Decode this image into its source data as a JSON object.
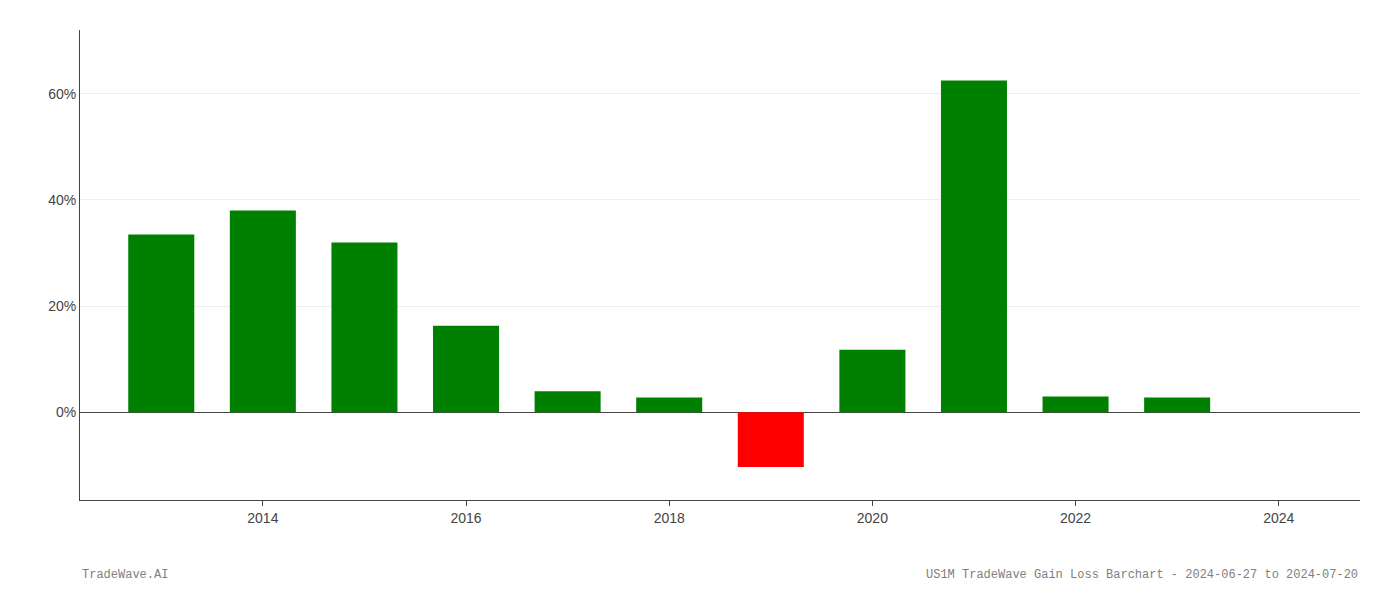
{
  "chart_data": {
    "type": "bar",
    "x": [
      2013,
      2014,
      2015,
      2016,
      2017,
      2018,
      2019,
      2020,
      2021,
      2022,
      2023
    ],
    "values": [
      0.335,
      0.38,
      0.32,
      0.163,
      0.04,
      0.028,
      -0.103,
      0.118,
      0.625,
      0.03,
      0.028
    ],
    "colors": [
      "#008000",
      "#008000",
      "#008000",
      "#008000",
      "#008000",
      "#008000",
      "#ff0000",
      "#008000",
      "#008000",
      "#008000",
      "#008000"
    ],
    "xlim": [
      2012.2,
      2024.8
    ],
    "ylim": [
      -0.165,
      0.72
    ],
    "xticks": [
      2014,
      2016,
      2018,
      2020,
      2022,
      2024
    ],
    "yticks": [
      {
        "value": 0.0,
        "label": "0%"
      },
      {
        "value": 0.2,
        "label": "20%"
      },
      {
        "value": 0.4,
        "label": "40%"
      },
      {
        "value": 0.6,
        "label": "60%"
      }
    ],
    "grid": true,
    "annotations": [
      "TradeWave.AI",
      "US1M TradeWave Gain Loss Barchart - 2024-06-27 to 2024-07-20"
    ]
  }
}
